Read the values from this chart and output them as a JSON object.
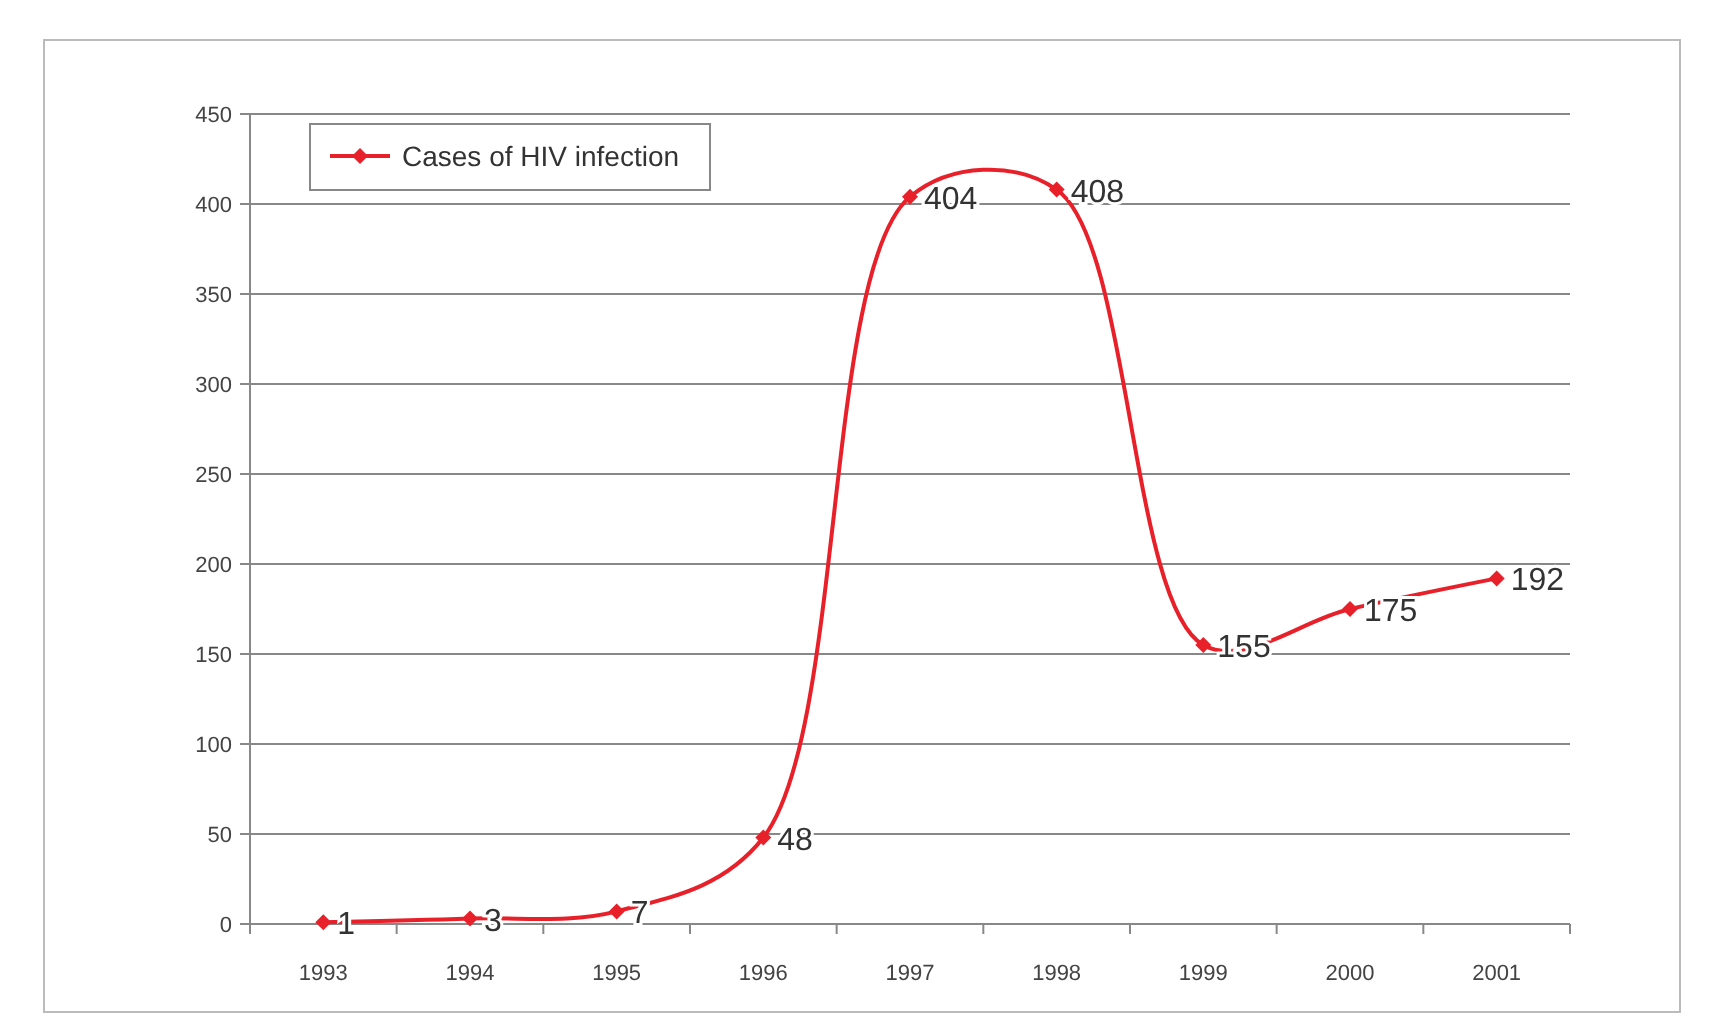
{
  "chart_data": {
    "type": "line",
    "categories": [
      "1993",
      "1994",
      "1995",
      "1996",
      "1997",
      "1998",
      "1999",
      "2000",
      "2001"
    ],
    "series": [
      {
        "name": "Cases of HIV infection",
        "color": "#e8202a",
        "values": [
          1,
          3,
          7,
          48,
          404,
          408,
          155,
          175,
          192
        ]
      }
    ],
    "ylim": [
      0,
      450
    ],
    "yticks": [
      0,
      50,
      100,
      150,
      200,
      250,
      300,
      350,
      400,
      450
    ],
    "grid": "y",
    "legend": "top left",
    "marker": "diamond",
    "line_style": "solid",
    "data_labels": true
  }
}
